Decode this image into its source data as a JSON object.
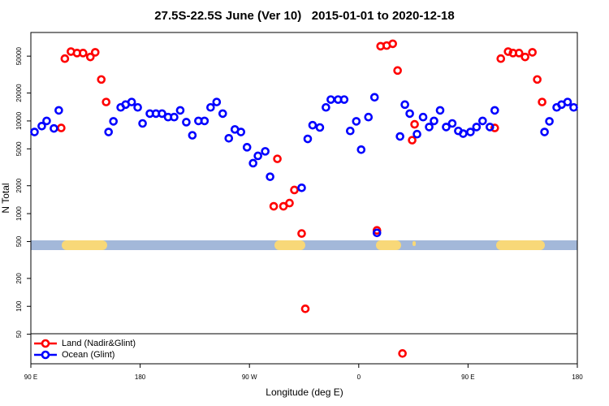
{
  "chart_data": {
    "type": "scatter",
    "title": "27.5S-22.5S June (Ver 10)   2015-01-01 to 2020-12-18",
    "x_label": "Longitude (deg E)",
    "y_label": "N Total",
    "log_y": true,
    "legend": "lower left",
    "xlim": [
      90,
      540
    ],
    "xticks": [
      {
        "value": 90,
        "label": "90 E"
      },
      {
        "value": 180,
        "label": "180"
      },
      {
        "value": 270,
        "label": "90 W"
      },
      {
        "value": 360,
        "label": "0"
      },
      {
        "value": 450,
        "label": "90 E"
      },
      {
        "value": 540,
        "label": "180"
      }
    ],
    "ylim": [
      24,
      90000
    ],
    "yticks": [
      50,
      100,
      200,
      500,
      1000,
      2000,
      5000,
      10000,
      20000,
      50000
    ],
    "series": [
      {
        "name": "Land (Nadir&Glint)",
        "color": "#ff0000",
        "x": [
          115,
          118,
          123,
          128,
          133,
          139,
          143,
          148,
          152,
          290,
          293,
          298,
          303,
          307,
          313,
          316,
          375,
          378,
          383,
          388,
          392,
          396,
          404,
          406,
          472,
          477,
          483,
          487,
          492,
          497,
          503,
          507,
          511
        ],
        "values": [
          8400,
          47000,
          56000,
          54000,
          54000,
          49000,
          55000,
          28000,
          16000,
          1200,
          3900,
          1200,
          1300,
          1800,
          610,
          94,
          660,
          64000,
          65000,
          68000,
          35000,
          31,
          6200,
          9200,
          8400,
          47000,
          56000,
          54000,
          54000,
          49000,
          55000,
          28000,
          16000
        ]
      },
      {
        "name": "Ocean (Glint)",
        "color": "#0000ff",
        "x": [
          93,
          99,
          103,
          109,
          113,
          154,
          158,
          164,
          168,
          173,
          178,
          182,
          188,
          193,
          198,
          203,
          208,
          213,
          218,
          223,
          228,
          233,
          238,
          243,
          248,
          253,
          258,
          263,
          268,
          273,
          277,
          283,
          287,
          313,
          318,
          322,
          328,
          333,
          337,
          343,
          348,
          353,
          358,
          362,
          368,
          373,
          375,
          394,
          398,
          402,
          408,
          413,
          418,
          422,
          427,
          432,
          437,
          442,
          446,
          452,
          457,
          462,
          468,
          472,
          513,
          517,
          523,
          527,
          532,
          537
        ],
        "values": [
          7600,
          8800,
          10000,
          8300,
          13000,
          7600,
          9900,
          14000,
          15000,
          16000,
          14000,
          9400,
          12000,
          12000,
          12000,
          11000,
          11000,
          13000,
          9700,
          7000,
          10000,
          10000,
          14000,
          16000,
          12000,
          6500,
          8100,
          7600,
          5200,
          3500,
          4200,
          4700,
          2500,
          1900,
          6400,
          9000,
          8500,
          14000,
          17000,
          17000,
          17000,
          7800,
          9900,
          4900,
          11000,
          18000,
          620,
          6800,
          15000,
          12000,
          7200,
          11000,
          8600,
          10000,
          13000,
          8600,
          9400,
          7800,
          7300,
          7600,
          8600,
          10000,
          8600,
          13000,
          7600,
          9900,
          14000,
          15000,
          16000,
          14000
        ]
      }
    ]
  }
}
